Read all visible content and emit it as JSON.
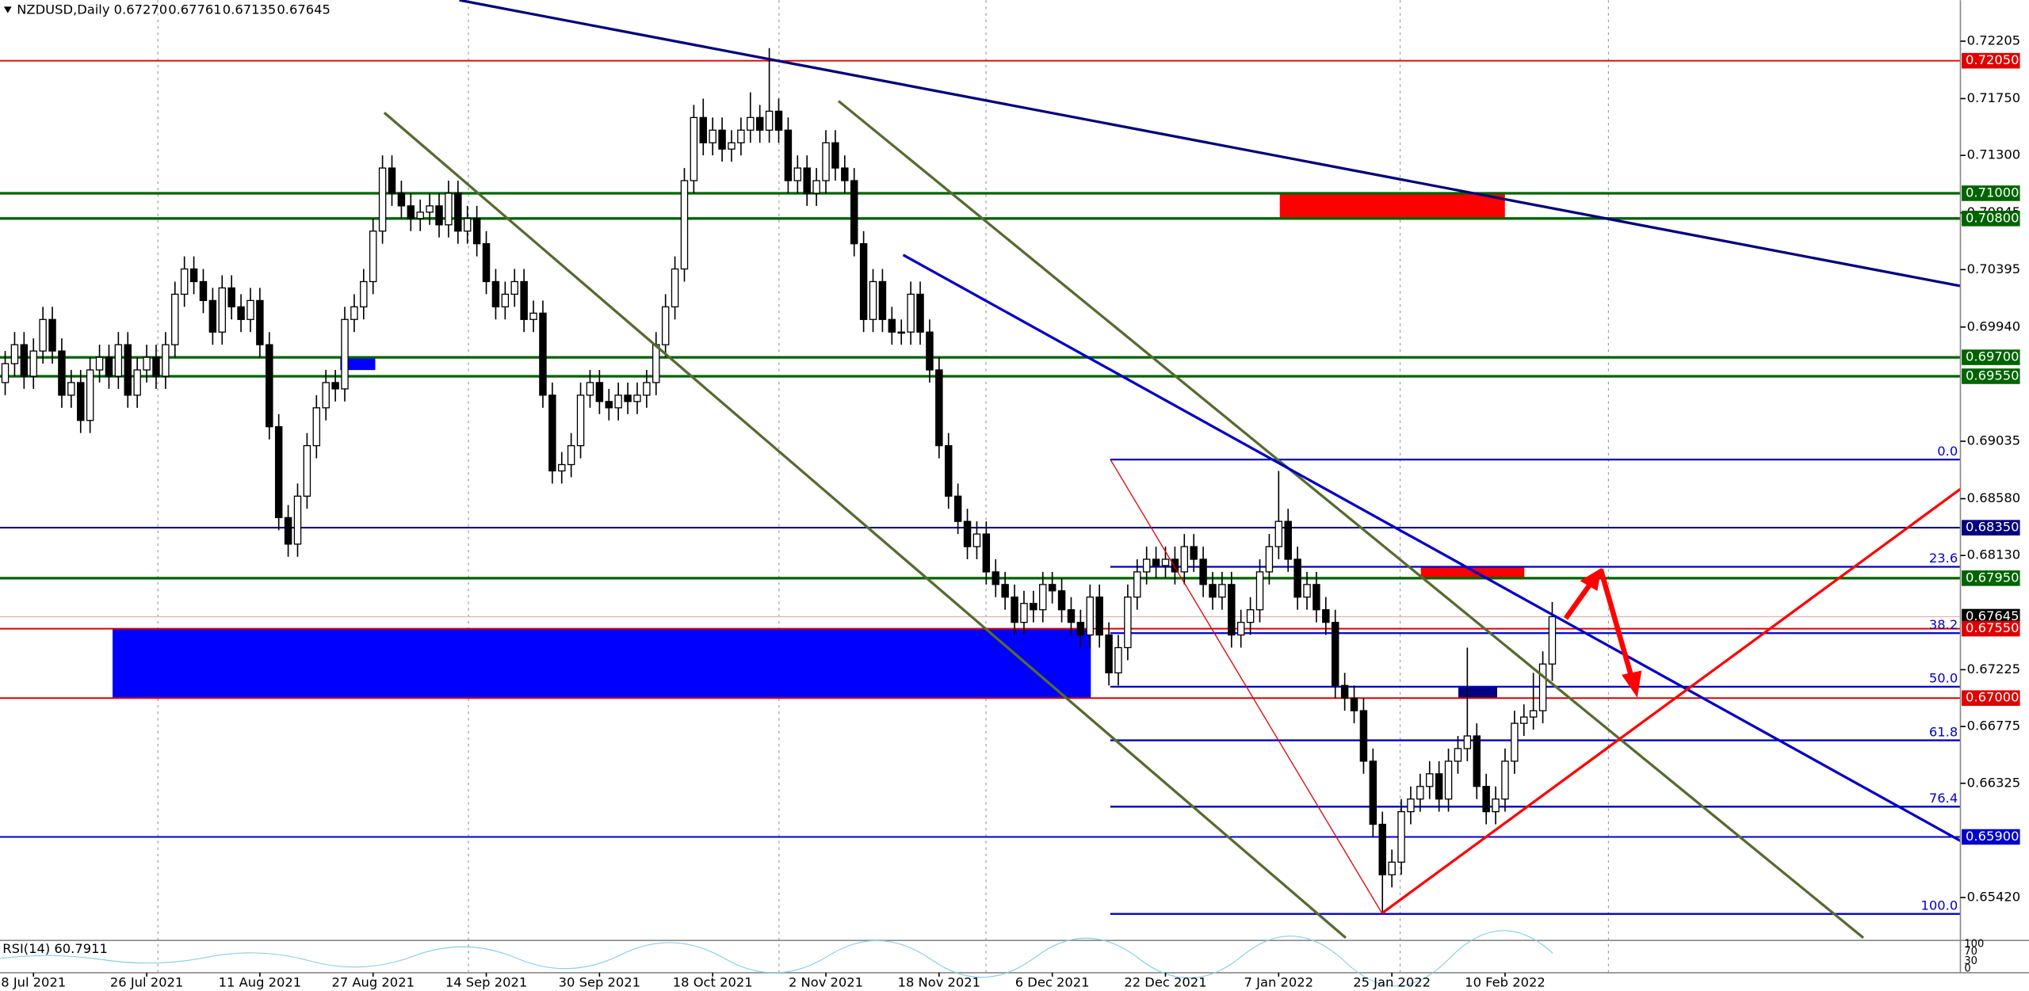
{
  "chart_data": {
    "type": "candlestick",
    "header": {
      "symbol": "NZDUSD,Daily",
      "prices": [
        "0.67270",
        "0.67761",
        "0.67135",
        "0.67645"
      ]
    },
    "ylim": [
      0.6508,
      0.7253
    ],
    "yticks": [
      0.72205,
      {
        "value": 0.7175,
        "label": "0.71750"
      },
      {
        "value": 0.713,
        "label": "0.71300"
      },
      0.70845,
      0.70395,
      {
        "value": 0.6994,
        "label": "0.69940"
      },
      0.69035,
      {
        "value": 0.6858,
        "label": "0.68580"
      },
      {
        "value": 0.6813,
        "label": "0.68130"
      },
      0.67225,
      0.66775,
      0.66325,
      {
        "value": 0.6542,
        "label": "0.65420"
      }
    ],
    "categories": [
      null,
      null,
      null,
      "8 Jul 2021",
      null,
      null,
      null,
      null,
      null,
      null,
      null,
      null,
      null,
      null,
      null,
      "26 Jul 2021",
      null,
      null,
      null,
      null,
      null,
      null,
      null,
      null,
      null,
      null,
      null,
      "11 Aug 2021",
      null,
      null,
      null,
      null,
      null,
      null,
      null,
      null,
      null,
      null,
      null,
      "27 Aug 2021",
      null,
      null,
      null,
      null,
      null,
      null,
      null,
      null,
      null,
      null,
      null,
      "14 Sep 2021",
      null,
      null,
      null,
      null,
      null,
      null,
      null,
      null,
      null,
      null,
      null,
      "30 Sep 2021",
      null,
      null,
      null,
      null,
      null,
      null,
      null,
      null,
      null,
      null,
      null,
      "18 Oct 2021",
      null,
      null,
      null,
      null,
      null,
      null,
      null,
      null,
      null,
      null,
      null,
      "2 Nov 2021",
      null,
      null,
      null,
      null,
      null,
      null,
      null,
      null,
      null,
      null,
      null,
      "18 Nov 2021",
      null,
      null,
      null,
      null,
      null,
      null,
      null,
      null,
      null,
      null,
      null,
      "6 Dec 2021",
      null,
      null,
      null,
      null,
      null,
      null,
      null,
      null,
      null,
      null,
      null,
      "22 Dec 2021",
      null,
      null,
      null,
      null,
      null,
      null,
      null,
      null,
      null,
      null,
      null,
      "7 Jan 2022",
      null,
      null,
      null,
      null,
      null,
      null,
      null,
      null,
      null,
      null,
      null,
      "25 Jan 2022",
      null,
      null,
      null,
      null,
      null,
      null,
      null,
      null,
      null,
      null,
      null,
      "10 Feb 2022",
      null,
      null,
      null,
      null,
      null
    ],
    "ohlc": [
      [
        0.695,
        0.6975,
        0.694,
        0.6965
      ],
      [
        0.6965,
        0.699,
        0.6955,
        0.698
      ],
      [
        0.698,
        0.699,
        0.6945,
        0.6955
      ],
      [
        0.6955,
        0.6985,
        0.6945,
        0.6975
      ],
      [
        0.6975,
        0.701,
        0.6965,
        0.7
      ],
      [
        0.7,
        0.701,
        0.6965,
        0.6975
      ],
      [
        0.6975,
        0.6985,
        0.693,
        0.694
      ],
      [
        0.694,
        0.696,
        0.693,
        0.695
      ],
      [
        0.695,
        0.696,
        0.691,
        0.692
      ],
      [
        0.692,
        0.697,
        0.691,
        0.696
      ],
      [
        0.696,
        0.698,
        0.695,
        0.697
      ],
      [
        0.697,
        0.698,
        0.6945,
        0.6955
      ],
      [
        0.6955,
        0.699,
        0.6945,
        0.698
      ],
      [
        0.698,
        0.699,
        0.693,
        0.694
      ],
      [
        0.694,
        0.697,
        0.693,
        0.696
      ],
      [
        0.696,
        0.698,
        0.695,
        0.697
      ],
      [
        0.697,
        0.698,
        0.6945,
        0.6955
      ],
      [
        0.6955,
        0.699,
        0.6945,
        0.698
      ],
      [
        0.698,
        0.703,
        0.697,
        0.702
      ],
      [
        0.702,
        0.705,
        0.701,
        0.704
      ],
      [
        0.704,
        0.705,
        0.702,
        0.703
      ],
      [
        0.703,
        0.704,
        0.7005,
        0.7015
      ],
      [
        0.7015,
        0.7025,
        0.698,
        0.699
      ],
      [
        0.699,
        0.7035,
        0.698,
        0.7025
      ],
      [
        0.7025,
        0.7035,
        0.7,
        0.701
      ],
      [
        0.701,
        0.702,
        0.699,
        0.7
      ],
      [
        0.7,
        0.7025,
        0.699,
        0.7015
      ],
      [
        0.7015,
        0.7025,
        0.697,
        0.698
      ],
      [
        0.698,
        0.699,
        0.6905,
        0.6915
      ],
      [
        0.6915,
        0.6925,
        0.6833,
        0.6843
      ],
      [
        0.6843,
        0.6853,
        0.6812,
        0.6822
      ],
      [
        0.6822,
        0.687,
        0.6812,
        0.686
      ],
      [
        0.686,
        0.691,
        0.685,
        0.69
      ],
      [
        0.69,
        0.694,
        0.689,
        0.693
      ],
      [
        0.693,
        0.696,
        0.692,
        0.695
      ],
      [
        0.695,
        0.696,
        0.6935,
        0.6945
      ],
      [
        0.6945,
        0.701,
        0.6935,
        0.7
      ],
      [
        0.7,
        0.702,
        0.699,
        0.701
      ],
      [
        0.701,
        0.704,
        0.7,
        0.703
      ],
      [
        0.703,
        0.708,
        0.702,
        0.707
      ],
      [
        0.707,
        0.713,
        0.706,
        0.712
      ],
      [
        0.712,
        0.713,
        0.709,
        0.71
      ],
      [
        0.71,
        0.711,
        0.708,
        0.709
      ],
      [
        0.709,
        0.71,
        0.707,
        0.708
      ],
      [
        0.708,
        0.7095,
        0.707,
        0.7085
      ],
      [
        0.7085,
        0.71,
        0.7075,
        0.709
      ],
      [
        0.709,
        0.71,
        0.7065,
        0.7075
      ],
      [
        0.7075,
        0.711,
        0.7065,
        0.71
      ],
      [
        0.71,
        0.711,
        0.706,
        0.707
      ],
      [
        0.707,
        0.709,
        0.706,
        0.708
      ],
      [
        0.708,
        0.709,
        0.705,
        0.706
      ],
      [
        0.706,
        0.707,
        0.702,
        0.703
      ],
      [
        0.703,
        0.704,
        0.7,
        0.701
      ],
      [
        0.701,
        0.703,
        0.7,
        0.702
      ],
      [
        0.702,
        0.704,
        0.701,
        0.703
      ],
      [
        0.703,
        0.704,
        0.699,
        0.7
      ],
      [
        0.7,
        0.7015,
        0.699,
        0.7005
      ],
      [
        0.7005,
        0.7015,
        0.693,
        0.694
      ],
      [
        0.694,
        0.695,
        0.687,
        0.688
      ],
      [
        0.688,
        0.6895,
        0.687,
        0.6885
      ],
      [
        0.6885,
        0.691,
        0.6875,
        0.69
      ],
      [
        0.69,
        0.695,
        0.689,
        0.694
      ],
      [
        0.694,
        0.696,
        0.693,
        0.695
      ],
      [
        0.695,
        0.696,
        0.6925,
        0.6935
      ],
      [
        0.6935,
        0.6945,
        0.692,
        0.693
      ],
      [
        0.693,
        0.695,
        0.692,
        0.694
      ],
      [
        0.694,
        0.695,
        0.6925,
        0.6935
      ],
      [
        0.6935,
        0.695,
        0.6925,
        0.694
      ],
      [
        0.694,
        0.696,
        0.693,
        0.695
      ],
      [
        0.695,
        0.699,
        0.694,
        0.698
      ],
      [
        0.698,
        0.702,
        0.697,
        0.701
      ],
      [
        0.701,
        0.705,
        0.7,
        0.704
      ],
      [
        0.704,
        0.712,
        0.703,
        0.711
      ],
      [
        0.711,
        0.717,
        0.71,
        0.716
      ],
      [
        0.716,
        0.7175,
        0.713,
        0.714
      ],
      [
        0.714,
        0.716,
        0.713,
        0.715
      ],
      [
        0.715,
        0.716,
        0.7125,
        0.7135
      ],
      [
        0.7135,
        0.715,
        0.7125,
        0.714
      ],
      [
        0.714,
        0.716,
        0.713,
        0.715
      ],
      [
        0.715,
        0.718,
        0.714,
        0.716
      ],
      [
        0.716,
        0.717,
        0.714,
        0.715
      ],
      [
        0.715,
        0.7215,
        0.714,
        0.7165
      ],
      [
        0.7165,
        0.7175,
        0.714,
        0.715
      ],
      [
        0.715,
        0.716,
        0.71,
        0.711
      ],
      [
        0.711,
        0.713,
        0.71,
        0.712
      ],
      [
        0.712,
        0.713,
        0.709,
        0.71
      ],
      [
        0.71,
        0.712,
        0.709,
        0.711
      ],
      [
        0.711,
        0.715,
        0.71,
        0.714
      ],
      [
        0.714,
        0.715,
        0.711,
        0.712
      ],
      [
        0.712,
        0.713,
        0.71,
        0.711
      ],
      [
        0.711,
        0.712,
        0.705,
        0.706
      ],
      [
        0.706,
        0.707,
        0.699,
        0.7
      ],
      [
        0.7,
        0.704,
        0.699,
        0.703
      ],
      [
        0.703,
        0.704,
        0.699,
        0.7
      ],
      [
        0.7,
        0.701,
        0.698,
        0.699
      ],
      [
        0.699,
        0.7,
        0.698,
        0.699
      ],
      [
        0.699,
        0.703,
        0.698,
        0.702
      ],
      [
        0.702,
        0.703,
        0.698,
        0.699
      ],
      [
        0.699,
        0.7,
        0.695,
        0.696
      ],
      [
        0.696,
        0.697,
        0.689,
        0.69
      ],
      [
        0.69,
        0.691,
        0.685,
        0.686
      ],
      [
        0.686,
        0.687,
        0.683,
        0.684
      ],
      [
        0.684,
        0.685,
        0.681,
        0.682
      ],
      [
        0.682,
        0.684,
        0.681,
        0.683
      ],
      [
        0.683,
        0.684,
        0.679,
        0.68
      ],
      [
        0.68,
        0.681,
        0.678,
        0.679
      ],
      [
        0.679,
        0.68,
        0.677,
        0.678
      ],
      [
        0.678,
        0.679,
        0.675,
        0.676
      ],
      [
        0.676,
        0.6785,
        0.675,
        0.6775
      ],
      [
        0.6775,
        0.6785,
        0.676,
        0.677
      ],
      [
        0.677,
        0.68,
        0.676,
        0.679
      ],
      [
        0.679,
        0.68,
        0.6775,
        0.6785
      ],
      [
        0.6785,
        0.6795,
        0.676,
        0.677
      ],
      [
        0.677,
        0.678,
        0.675,
        0.676
      ],
      [
        0.676,
        0.677,
        0.674,
        0.675
      ],
      [
        0.675,
        0.679,
        0.674,
        0.678
      ],
      [
        0.678,
        0.679,
        0.674,
        0.675
      ],
      [
        0.675,
        0.676,
        0.671,
        0.672
      ],
      [
        0.672,
        0.675,
        0.671,
        0.674
      ],
      [
        0.674,
        0.679,
        0.673,
        0.678
      ],
      [
        0.678,
        0.681,
        0.677,
        0.68
      ],
      [
        0.68,
        0.682,
        0.679,
        0.681
      ],
      [
        0.681,
        0.682,
        0.6795,
        0.6805
      ],
      [
        0.6805,
        0.682,
        0.6795,
        0.681
      ],
      [
        0.681,
        0.682,
        0.679,
        0.68
      ],
      [
        0.68,
        0.683,
        0.679,
        0.682
      ],
      [
        0.682,
        0.683,
        0.68,
        0.681
      ],
      [
        0.681,
        0.682,
        0.678,
        0.679
      ],
      [
        0.679,
        0.68,
        0.677,
        0.678
      ],
      [
        0.678,
        0.68,
        0.677,
        0.679
      ],
      [
        0.679,
        0.68,
        0.674,
        0.675
      ],
      [
        0.675,
        0.677,
        0.674,
        0.676
      ],
      [
        0.676,
        0.678,
        0.675,
        0.677
      ],
      [
        0.677,
        0.681,
        0.676,
        0.68
      ],
      [
        0.68,
        0.683,
        0.679,
        0.682
      ],
      [
        0.682,
        0.688,
        0.681,
        0.684
      ],
      [
        0.684,
        0.685,
        0.68,
        0.681
      ],
      [
        0.681,
        0.682,
        0.677,
        0.678
      ],
      [
        0.678,
        0.68,
        0.677,
        0.679
      ],
      [
        0.679,
        0.68,
        0.676,
        0.677
      ],
      [
        0.677,
        0.678,
        0.675,
        0.676
      ],
      [
        0.676,
        0.677,
        0.67,
        0.671
      ],
      [
        0.671,
        0.672,
        0.669,
        0.67
      ],
      [
        0.67,
        0.671,
        0.668,
        0.669
      ],
      [
        0.669,
        0.67,
        0.664,
        0.665
      ],
      [
        0.665,
        0.666,
        0.659,
        0.66
      ],
      [
        0.66,
        0.661,
        0.653,
        0.656
      ],
      [
        0.656,
        0.658,
        0.655,
        0.657
      ],
      [
        0.657,
        0.662,
        0.656,
        0.661
      ],
      [
        0.661,
        0.663,
        0.66,
        0.662
      ],
      [
        0.662,
        0.664,
        0.661,
        0.663
      ],
      [
        0.663,
        0.665,
        0.662,
        0.664
      ],
      [
        0.664,
        0.665,
        0.661,
        0.662
      ],
      [
        0.662,
        0.666,
        0.661,
        0.665
      ],
      [
        0.665,
        0.667,
        0.664,
        0.666
      ],
      [
        0.666,
        0.674,
        0.665,
        0.667
      ],
      [
        0.667,
        0.668,
        0.662,
        0.663
      ],
      [
        0.663,
        0.664,
        0.66,
        0.661
      ],
      [
        0.661,
        0.663,
        0.66,
        0.662
      ],
      [
        0.662,
        0.666,
        0.661,
        0.665
      ],
      [
        0.665,
        0.669,
        0.664,
        0.668
      ],
      [
        0.668,
        0.6695,
        0.667,
        0.6685
      ],
      [
        0.6685,
        0.672,
        0.6675,
        0.669
      ],
      [
        0.669,
        0.6737,
        0.668,
        0.6727
      ],
      [
        0.6727,
        0.67761,
        0.67135,
        0.67645
      ]
    ],
    "levels": [
      {
        "value": 0.7205,
        "label": "0.72050",
        "color": "#e00000"
      },
      {
        "value": 0.71,
        "label": "0.71000",
        "color": "#006400"
      },
      {
        "value": 0.708,
        "label": "0.70800",
        "color": "#006400"
      },
      {
        "value": 0.697,
        "label": "0.69700",
        "color": "#006400"
      },
      {
        "value": 0.6955,
        "label": "0.69550",
        "color": "#006400"
      },
      {
        "value": 0.6835,
        "label": "0.68350",
        "color": "#000080"
      },
      {
        "value": 0.6795,
        "label": "0.67950",
        "color": "#006400"
      },
      {
        "value": 0.67645,
        "label": "0.67645",
        "color": "#000000"
      },
      {
        "value": 0.6755,
        "label": "0.67550",
        "color": "#e00000"
      },
      {
        "value": 0.67,
        "label": "0.67000",
        "color": "#e00000"
      },
      {
        "value": 0.659,
        "label": "0.65900",
        "color": "#0000cc"
      }
    ],
    "fibonacci": {
      "high": 0.6889,
      "low": 0.6529,
      "color": "#0000cc",
      "levels": [
        {
          "value": 0,
          "label": "0.0"
        },
        23.6,
        38.2,
        {
          "value": 50,
          "label": "50.0"
        },
        61.8,
        76.4,
        {
          "value": 100,
          "label": "100.0"
        }
      ]
    },
    "rsi": {
      "label": "RSI(14) 60.7911",
      "levels": [
        100,
        70,
        30,
        0
      ]
    }
  }
}
